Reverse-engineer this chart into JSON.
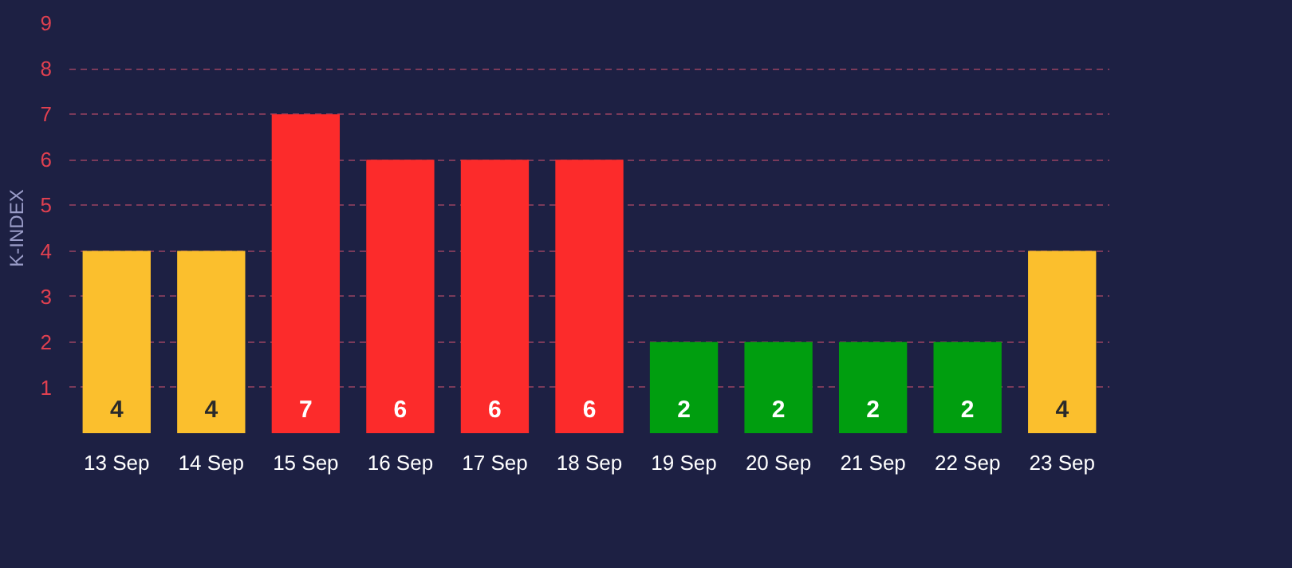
{
  "chart_data": {
    "type": "bar",
    "ylabel": "K-INDEX",
    "categories": [
      "13 Sep",
      "14 Sep",
      "15 Sep",
      "16 Sep",
      "17 Sep",
      "18 Sep",
      "19 Sep",
      "20 Sep",
      "21 Sep",
      "22 Sep",
      "23 Sep"
    ],
    "values": [
      4,
      4,
      7,
      6,
      6,
      6,
      2,
      2,
      2,
      2,
      4
    ],
    "colors": [
      "#fbbf2d",
      "#fbbf2d",
      "#fc2b2b",
      "#fc2b2b",
      "#fc2b2b",
      "#fc2b2b",
      "#009e0f",
      "#009e0f",
      "#009e0f",
      "#009e0f",
      "#fbbf2d"
    ],
    "ylim": [
      0,
      9
    ],
    "yticks": [
      1,
      2,
      3,
      4,
      5,
      6,
      7,
      8,
      9
    ],
    "grid": "y",
    "data_labels": true
  }
}
